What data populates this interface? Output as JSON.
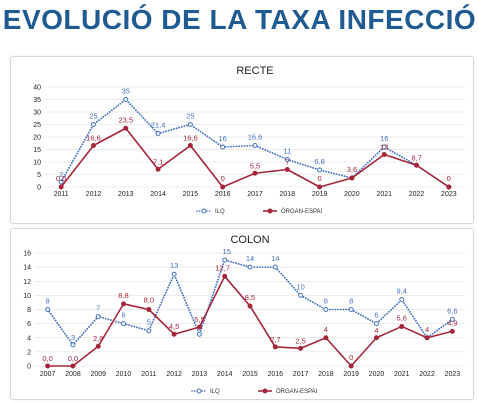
{
  "page": {
    "title": "EVOLUCIÓ DE LA TAXA INFECCIÓ"
  },
  "colors": {
    "ilq": "#4472c4",
    "organ": "#a5263b",
    "title": "#1f5a91",
    "grid": "#d9d9d9"
  },
  "chart_data": [
    {
      "id": "recte",
      "type": "line",
      "title": "RECTE",
      "categories": [
        "2011",
        "2012",
        "2013",
        "2014",
        "2015",
        "2016",
        "2017",
        "2018",
        "2019",
        "2020",
        "2021",
        "2022",
        "2023"
      ],
      "ylim": [
        0,
        40
      ],
      "yticks": [
        0,
        5,
        10,
        15,
        20,
        25,
        30,
        35,
        40
      ],
      "grid": true,
      "legend": "bottom",
      "series": [
        {
          "name": "ILQ",
          "style": "dotted",
          "values": [
            2,
            25,
            35,
            21.4,
            25,
            16,
            16.6,
            11,
            6.8,
            3.6,
            16,
            8.7,
            0
          ],
          "labels": [
            "2",
            "25",
            "35",
            "21,4",
            "25",
            "16",
            "16,6",
            "11",
            "6,8",
            "",
            "16",
            "",
            ""
          ]
        },
        {
          "name": "ÒRGAN-ESPAI",
          "style": "solid",
          "values": [
            0,
            16.6,
            23.5,
            7.1,
            16.6,
            0,
            5.5,
            7,
            0,
            3.6,
            13,
            8.7,
            0
          ],
          "labels": [
            "0,0",
            "16,6",
            "23,5",
            "7,1",
            "16,6",
            "0",
            "5,5",
            "7",
            "0",
            "3,6",
            "13",
            "8,7",
            "0"
          ]
        }
      ]
    },
    {
      "id": "colon",
      "type": "line",
      "title": "COLON",
      "categories": [
        "2007",
        "2008",
        "2009",
        "2010",
        "2011",
        "2012",
        "2013",
        "2014",
        "2015",
        "2016",
        "2017",
        "2018",
        "2019",
        "2020",
        "2021",
        "2022",
        "2023"
      ],
      "ylim": [
        0,
        16
      ],
      "yticks": [
        0,
        2,
        4,
        6,
        8,
        10,
        12,
        14,
        16
      ],
      "grid": true,
      "legend": "bottom",
      "series": [
        {
          "name": "ILQ",
          "style": "dotted",
          "values": [
            8,
            3,
            7,
            6,
            5,
            13,
            4.5,
            15,
            14,
            14,
            10,
            8,
            8,
            6,
            9.4,
            4,
            6.6
          ],
          "labels": [
            "8",
            "3",
            "7",
            "6",
            "5",
            "13",
            "",
            "15",
            "14",
            "14",
            "10",
            "8",
            "8",
            "6",
            "9,4",
            "",
            "6,6"
          ]
        },
        {
          "name": "ÒRGAN-ESPAI",
          "style": "solid",
          "values": [
            0,
            0,
            2.8,
            8.8,
            8,
            4.5,
            5.5,
            12.7,
            8.5,
            2.7,
            2.5,
            4,
            0,
            4,
            5.6,
            4,
            4.9
          ],
          "labels": [
            "0,0",
            "0,0",
            "2,8",
            "8,8",
            "8,0",
            "4,5",
            "5,5",
            "12,7",
            "8,5",
            "2,7",
            "2,5",
            "4",
            "0",
            "4",
            "5,6",
            "4",
            "4,9"
          ]
        }
      ]
    }
  ]
}
